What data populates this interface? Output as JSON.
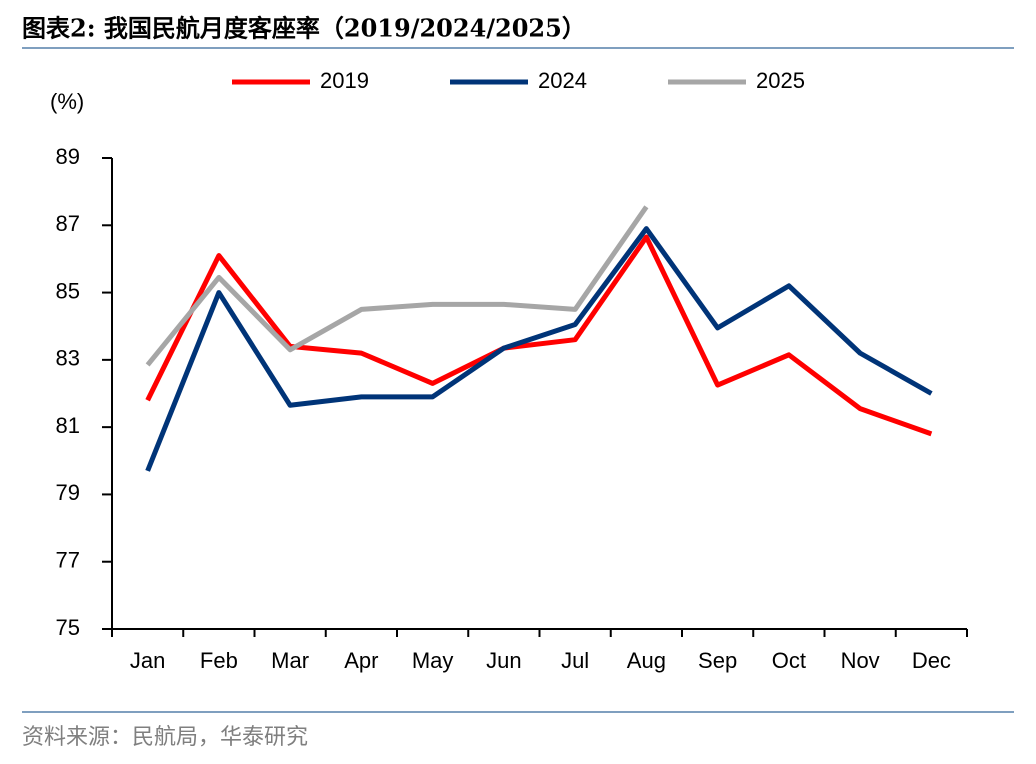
{
  "chart_data": {
    "type": "line",
    "title": "图表2:   我国民航月度客座率（2019/2024/2025）",
    "y_label": "(%)",
    "source": "资料来源：民航局，华泰研究",
    "categories": [
      "Jan",
      "Feb",
      "Mar",
      "Apr",
      "May",
      "Jun",
      "Jul",
      "Aug",
      "Sep",
      "Oct",
      "Nov",
      "Dec"
    ],
    "series": [
      {
        "name": "2019",
        "color": "#ff0000",
        "values": [
          81.8,
          86.1,
          83.4,
          83.2,
          82.3,
          83.35,
          83.6,
          86.65,
          82.25,
          83.15,
          81.55,
          80.8
        ]
      },
      {
        "name": "2024",
        "color": "#003478",
        "values": [
          79.7,
          85.0,
          81.65,
          81.9,
          81.9,
          83.35,
          84.05,
          86.9,
          83.95,
          85.2,
          83.2,
          82.0
        ]
      },
      {
        "name": "2025",
        "color": "#a6a6a6",
        "values": [
          82.85,
          85.45,
          83.3,
          84.5,
          84.65,
          84.65,
          84.5,
          87.55,
          null,
          null,
          null,
          null
        ]
      }
    ],
    "ylim": [
      75,
      89
    ],
    "yticks": [
      75,
      77,
      79,
      81,
      83,
      85,
      87,
      89
    ],
    "legend": "top"
  }
}
